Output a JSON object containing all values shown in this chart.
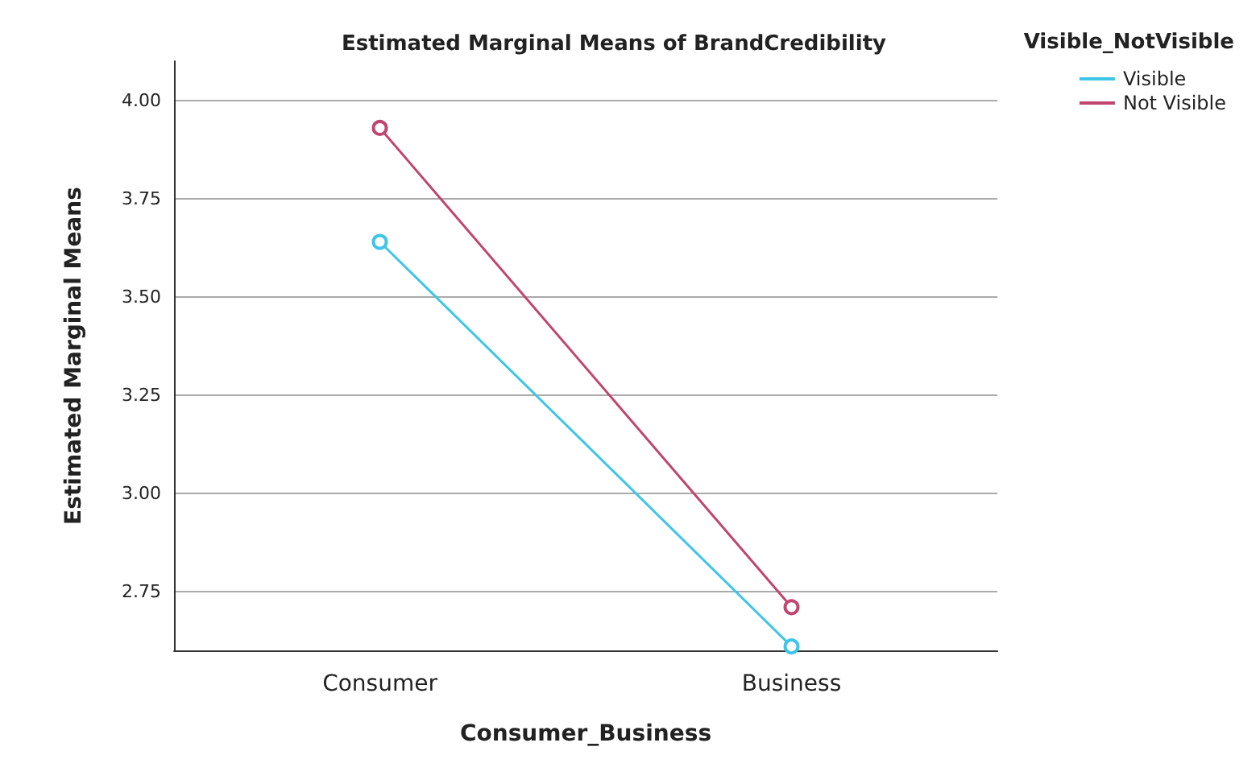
{
  "chart_data": {
    "type": "line",
    "title": "Estimated Marginal Means of BrandCredibility",
    "xlabel": "Consumer_Business",
    "ylabel": "Estimated Marginal Means",
    "legend_title": "Visible_NotVisible",
    "categories": [
      "Consumer",
      "Business"
    ],
    "series": [
      {
        "name": "Visible",
        "color": "#3ec5e8",
        "values": [
          3.64,
          2.61
        ]
      },
      {
        "name": "Not Visible",
        "color": "#c0456f",
        "values": [
          3.93,
          2.71
        ]
      }
    ],
    "ylim": [
      2.6,
      4.1
    ],
    "yticks": [
      {
        "value": 2.75,
        "label": "2.75"
      },
      {
        "value": 3,
        "label": "3.00"
      },
      {
        "value": 3.25,
        "label": "3.25"
      },
      {
        "value": 3.5,
        "label": "3.50"
      },
      {
        "value": 3.75,
        "label": "3.75"
      },
      {
        "value": 4,
        "label": "4.00"
      }
    ],
    "grid": "y",
    "legend": "top right",
    "marker": "circle",
    "line_style": "solid"
  }
}
